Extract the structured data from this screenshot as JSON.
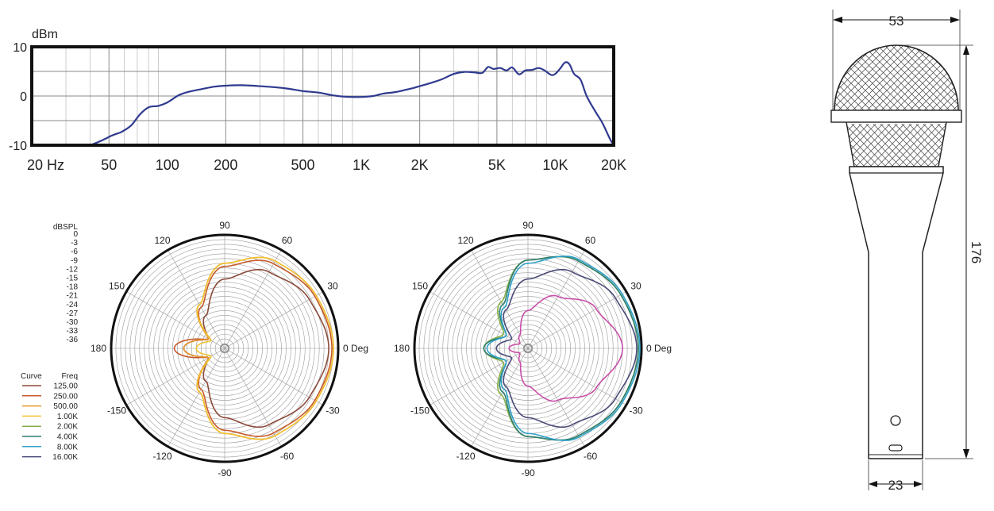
{
  "chart_data": [
    {
      "type": "line",
      "ylabel": "dBm",
      "x_scale": "log",
      "xlim": [
        20,
        20000
      ],
      "ylim": [
        -10,
        10
      ],
      "y_ticks": [
        "10",
        "0",
        "-10"
      ],
      "x_ticks": [
        {
          "value": 20,
          "label": "20  Hz"
        },
        {
          "value": 50,
          "label": "50"
        },
        {
          "value": 100,
          "label": "100"
        },
        {
          "value": 200,
          "label": "200"
        },
        {
          "value": 500,
          "label": "500"
        },
        {
          "value": 1000,
          "label": "1K"
        },
        {
          "value": 2000,
          "label": "2K"
        },
        {
          "value": 5000,
          "label": "5K"
        },
        {
          "value": 10000,
          "label": "10K"
        },
        {
          "value": 20000,
          "label": "20K"
        }
      ],
      "grid": true,
      "color": "#2f3a8f",
      "series": [
        {
          "x": [
            40,
            45,
            52,
            58,
            65,
            72,
            80,
            90,
            100,
            115,
            130,
            150,
            175,
            200,
            240,
            300,
            400,
            500,
            600,
            700,
            800,
            900,
            1000,
            1150,
            1300,
            1500,
            1800,
            2000,
            2300,
            2600,
            3000,
            3400,
            3800,
            4200,
            4500,
            4800,
            5200,
            5600,
            6000,
            6500,
            7000,
            7600,
            8200,
            8800,
            9500,
            10000,
            10600,
            11200,
            11800,
            12500,
            13500,
            14500,
            16000,
            17500,
            19000,
            20000
          ],
          "y": [
            -10,
            -9.2,
            -8,
            -7.3,
            -6,
            -3.8,
            -2.3,
            -2,
            -1.3,
            0.2,
            0.9,
            1.4,
            1.9,
            2.1,
            2.2,
            2.0,
            1.6,
            1.0,
            0.7,
            0.2,
            -0.1,
            -0.2,
            -0.2,
            0,
            0.5,
            0.8,
            1.5,
            2,
            2.7,
            3.4,
            4.5,
            4.9,
            4.8,
            4.7,
            5.9,
            5.5,
            5.7,
            5.2,
            5.8,
            4.4,
            5.2,
            5.3,
            5.7,
            5.2,
            4.3,
            4.5,
            5.6,
            6.8,
            6.5,
            4.5,
            3.3,
            0,
            -3,
            -5.5,
            -8.5,
            -10
          ]
        }
      ]
    },
    {
      "type": "polar",
      "scale_title": "dBSPL",
      "scale_ticks": [
        "0",
        "-3",
        "-6",
        "-9",
        "-12",
        "-15",
        "-18",
        "-21",
        "-24",
        "-27",
        "-30",
        "-33",
        "-36"
      ],
      "r_range_db": [
        -36,
        0
      ],
      "angle_labels": [
        "0 Deg",
        "30",
        "60",
        "90",
        "120",
        "150",
        "180",
        "-150",
        "-120",
        "-90",
        "-60",
        "-30"
      ],
      "legend_headers": {
        "curve": "Curve",
        "freq": "Freq"
      },
      "legend": [
        {
          "freq": "125.00",
          "color": "#8b4a3a"
        },
        {
          "freq": "250.00",
          "color": "#c65a2a"
        },
        {
          "freq": "500.00",
          "color": "#e6952e"
        },
        {
          "freq": "1.00K",
          "color": "#f2c230"
        },
        {
          "freq": "2.00K",
          "color": "#86b04a"
        },
        {
          "freq": "4.00K",
          "color": "#2e7d6e"
        },
        {
          "freq": "8.00K",
          "color": "#2ea1c9"
        },
        {
          "freq": "16.00K",
          "color": "#4a4a78"
        }
      ],
      "series": [
        {
          "freq": "125.00",
          "color": "#8b4a3a",
          "angle_deg": [
            0,
            30,
            60,
            90,
            120,
            150,
            180
          ],
          "db": [
            -3,
            -5,
            -8,
            -14,
            -24,
            -30,
            -23
          ]
        },
        {
          "freq": "250.00",
          "color": "#c65a2a",
          "angle_deg": [
            0,
            30,
            60,
            90,
            120,
            150,
            180
          ],
          "db": [
            -2,
            -3,
            -5,
            -10,
            -21,
            -30,
            -20
          ]
        },
        {
          "freq": "500.00",
          "color": "#e6952e",
          "angle_deg": [
            0,
            30,
            60,
            90,
            120,
            150,
            180
          ],
          "db": [
            -1.5,
            -2.5,
            -4,
            -9,
            -20,
            -30,
            -23
          ]
        },
        {
          "freq": "1.00K",
          "color": "#f2c230",
          "angle_deg": [
            0,
            30,
            60,
            90,
            120,
            150,
            180
          ],
          "db": [
            -1.5,
            -2.5,
            -4,
            -9,
            -20,
            -31,
            -27
          ]
        }
      ]
    },
    {
      "type": "polar",
      "r_range_db": [
        -36,
        0
      ],
      "angle_labels": [
        "0 Deg",
        "30",
        "60",
        "90",
        "120",
        "150",
        "180",
        "-150",
        "-120",
        "-90",
        "-60",
        "-30"
      ],
      "series": [
        {
          "freq": "2.00K",
          "color": "#86b04a",
          "angle_deg": [
            0,
            30,
            60,
            90,
            120,
            150,
            180
          ],
          "db": [
            -1,
            -2,
            -4,
            -8,
            -19,
            -27,
            -22
          ]
        },
        {
          "freq": "4.00K",
          "color": "#2e7d6e",
          "angle_deg": [
            0,
            30,
            60,
            90,
            120,
            150,
            180
          ],
          "db": [
            -1,
            -2,
            -4,
            -8,
            -20,
            -28,
            -22
          ]
        },
        {
          "freq": "8.00K",
          "color": "#2ea1c9",
          "angle_deg": [
            0,
            30,
            60,
            90,
            120,
            150,
            180
          ],
          "db": [
            -0.5,
            -1.5,
            -3.5,
            -9,
            -21,
            -28,
            -23
          ]
        },
        {
          "freq": "16.00K",
          "color": "#4a4a78",
          "angle_deg": [
            0,
            30,
            60,
            90,
            120,
            150,
            180
          ],
          "db": [
            -1.5,
            -4,
            -8,
            -14,
            -22,
            -30,
            -26
          ]
        },
        {
          "freq": "",
          "color": "#c94fa8",
          "angle_deg": [
            0,
            30,
            60,
            90,
            120,
            150,
            180
          ],
          "db": [
            -6,
            -11,
            -17,
            -24,
            -31,
            -33,
            -30
          ]
        }
      ]
    }
  ],
  "drawing": {
    "width_label": "53",
    "length_label": "176",
    "handle_label": "23"
  }
}
